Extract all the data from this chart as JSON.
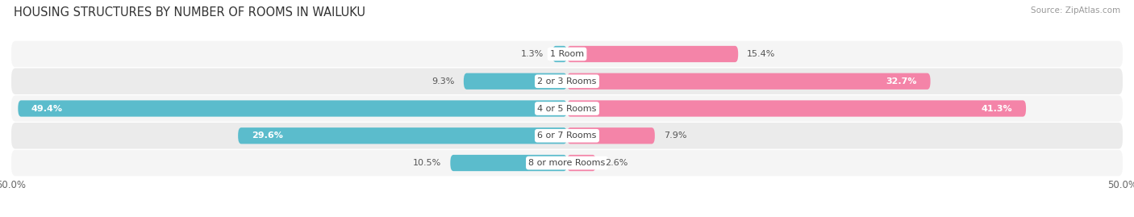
{
  "title": "HOUSING STRUCTURES BY NUMBER OF ROOMS IN WAILUKU",
  "source": "Source: ZipAtlas.com",
  "categories": [
    "1 Room",
    "2 or 3 Rooms",
    "4 or 5 Rooms",
    "6 or 7 Rooms",
    "8 or more Rooms"
  ],
  "owner_values": [
    1.3,
    9.3,
    49.4,
    29.6,
    10.5
  ],
  "renter_values": [
    15.4,
    32.7,
    41.3,
    7.9,
    2.6
  ],
  "owner_color": "#5bbccc",
  "renter_color": "#f484a8",
  "bar_height": 0.6,
  "xlim": [
    -50,
    50
  ],
  "background_color": "#ffffff",
  "row_colors": [
    "#f5f5f5",
    "#ebebeb"
  ],
  "title_fontsize": 10.5,
  "source_fontsize": 7.5,
  "label_fontsize": 8,
  "category_fontsize": 8,
  "legend_fontsize": 8.5
}
